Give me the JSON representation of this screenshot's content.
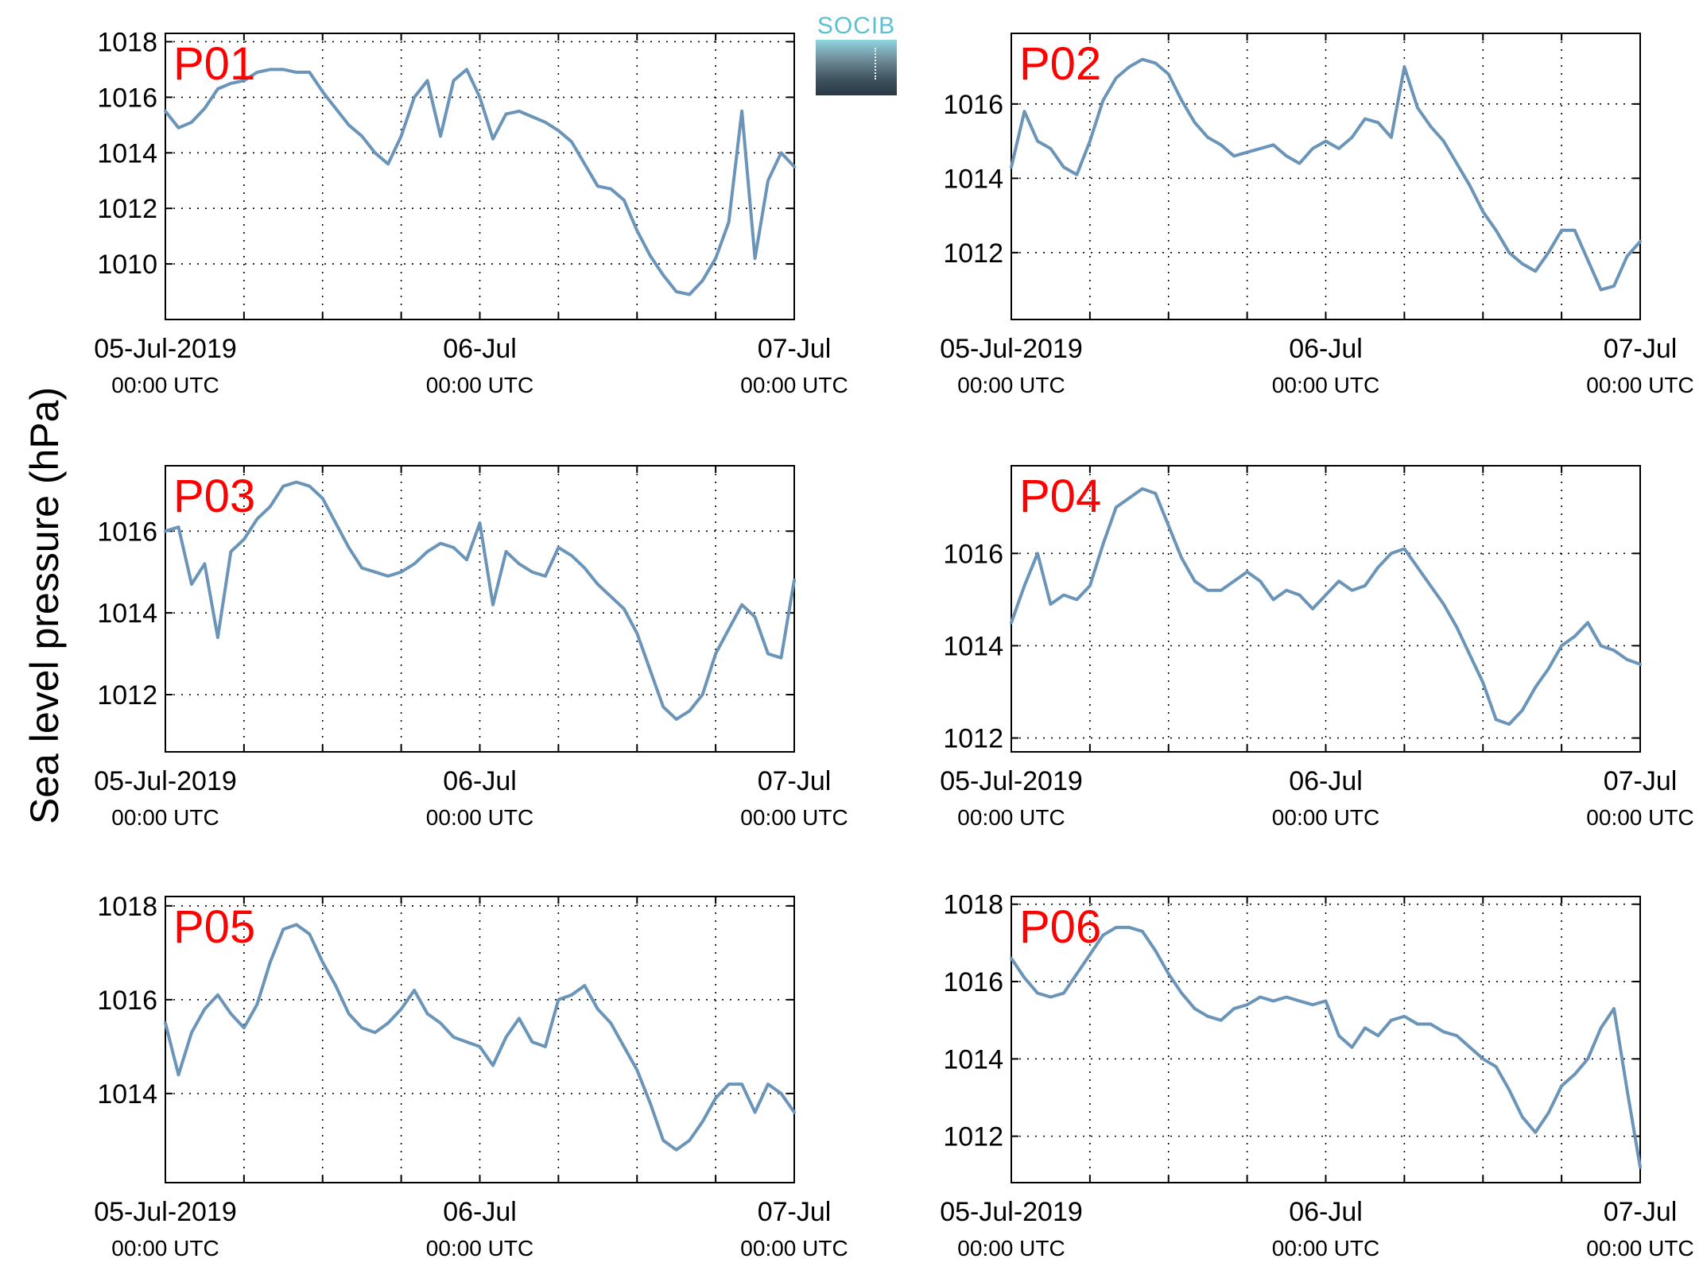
{
  "figure": {
    "ylabel": "Sea level pressure (hPa)",
    "logo_text": "SOCIB"
  },
  "colors": {
    "series": "#6a94b8",
    "panel_label": "#ff0000",
    "grid": "#000000",
    "logo_accent": "#5bc0d4"
  },
  "chart_data": [
    {
      "type": "line",
      "panel_label": "P01",
      "x_range": [
        "2019-07-05T00:00Z",
        "2019-07-07T00:00Z"
      ],
      "x_tick_labels": [
        [
          "05-Jul-2019",
          "00:00 UTC"
        ],
        [
          "06-Jul",
          "00:00 UTC"
        ],
        [
          "07-Jul",
          "00:00 UTC"
        ]
      ],
      "ylim": [
        1008.0,
        1018.3
      ],
      "yticks": [
        1010,
        1012,
        1014,
        1016,
        1018
      ],
      "grid": true,
      "x_hours": [
        0,
        1,
        2,
        3,
        4,
        5,
        6,
        7,
        8,
        9,
        10,
        11,
        12,
        13,
        14,
        15,
        16,
        17,
        18,
        19,
        20,
        21,
        22,
        23,
        24,
        25,
        26,
        27,
        28,
        29,
        30,
        31,
        32,
        33,
        34,
        35,
        36,
        37,
        38,
        39,
        40,
        41,
        42,
        43,
        44,
        45,
        46,
        47,
        48
      ],
      "values": [
        1015.5,
        1014.9,
        1015.1,
        1015.6,
        1016.3,
        1016.5,
        1016.6,
        1016.9,
        1017.0,
        1017.0,
        1016.9,
        1016.9,
        1016.2,
        1015.6,
        1015.0,
        1014.6,
        1014.0,
        1013.6,
        1014.6,
        1016.0,
        1016.6,
        1014.6,
        1016.6,
        1017.0,
        1016.0,
        1014.5,
        1015.4,
        1015.5,
        1015.3,
        1015.1,
        1014.8,
        1014.4,
        1013.6,
        1012.8,
        1012.7,
        1012.3,
        1011.2,
        1010.3,
        1009.6,
        1009.0,
        1008.9,
        1009.4,
        1010.2,
        1011.5,
        1015.5,
        1010.2,
        1013.0,
        1014.0,
        1013.5
      ],
      "series": [
        {
          "name": "",
          "color": "#6a94b8"
        }
      ]
    },
    {
      "type": "line",
      "panel_label": "P02",
      "x_range": [
        "2019-07-05T00:00Z",
        "2019-07-07T00:00Z"
      ],
      "x_tick_labels": [
        [
          "05-Jul-2019",
          "00:00 UTC"
        ],
        [
          "06-Jul",
          "00:00 UTC"
        ],
        [
          "07-Jul",
          "00:00 UTC"
        ]
      ],
      "ylim": [
        1010.2,
        1017.9
      ],
      "yticks": [
        1012,
        1014,
        1016
      ],
      "grid": true,
      "x_hours": [
        0,
        1,
        2,
        3,
        4,
        5,
        6,
        7,
        8,
        9,
        10,
        11,
        12,
        13,
        14,
        15,
        16,
        17,
        18,
        19,
        20,
        21,
        22,
        23,
        24,
        25,
        26,
        27,
        28,
        29,
        30,
        31,
        32,
        33,
        34,
        35,
        36,
        37,
        38,
        39,
        40,
        41,
        42,
        43,
        44,
        45,
        46,
        47,
        48
      ],
      "values": [
        1014.3,
        1015.8,
        1015.0,
        1014.8,
        1014.3,
        1014.1,
        1015.0,
        1016.1,
        1016.7,
        1017.0,
        1017.2,
        1017.1,
        1016.8,
        1016.1,
        1015.5,
        1015.1,
        1014.9,
        1014.6,
        1014.7,
        1014.8,
        1014.9,
        1014.6,
        1014.4,
        1014.8,
        1015.0,
        1014.8,
        1015.1,
        1015.6,
        1015.5,
        1015.1,
        1017.0,
        1015.9,
        1015.4,
        1015.0,
        1014.4,
        1013.8,
        1013.1,
        1012.6,
        1012.0,
        1011.7,
        1011.5,
        1012.0,
        1012.6,
        1012.6,
        1011.8,
        1011.0,
        1011.1,
        1011.9,
        1012.3
      ],
      "series": [
        {
          "name": "",
          "color": "#6a94b8"
        }
      ]
    },
    {
      "type": "line",
      "panel_label": "P03",
      "x_range": [
        "2019-07-05T00:00Z",
        "2019-07-07T00:00Z"
      ],
      "x_tick_labels": [
        [
          "05-Jul-2019",
          "00:00 UTC"
        ],
        [
          "06-Jul",
          "00:00 UTC"
        ],
        [
          "07-Jul",
          "00:00 UTC"
        ]
      ],
      "ylim": [
        1010.6,
        1017.6
      ],
      "yticks": [
        1012,
        1014,
        1016
      ],
      "grid": true,
      "x_hours": [
        0,
        1,
        2,
        3,
        4,
        5,
        6,
        7,
        8,
        9,
        10,
        11,
        12,
        13,
        14,
        15,
        16,
        17,
        18,
        19,
        20,
        21,
        22,
        23,
        24,
        25,
        26,
        27,
        28,
        29,
        30,
        31,
        32,
        33,
        34,
        35,
        36,
        37,
        38,
        39,
        40,
        41,
        42,
        43,
        44,
        45,
        46,
        47,
        48
      ],
      "values": [
        1016.0,
        1016.1,
        1014.7,
        1015.2,
        1013.4,
        1015.5,
        1015.8,
        1016.3,
        1016.6,
        1017.1,
        1017.2,
        1017.1,
        1016.8,
        1016.2,
        1015.6,
        1015.1,
        1015.0,
        1014.9,
        1015.0,
        1015.2,
        1015.5,
        1015.7,
        1015.6,
        1015.3,
        1016.2,
        1014.2,
        1015.5,
        1015.2,
        1015.0,
        1014.9,
        1015.6,
        1015.4,
        1015.1,
        1014.7,
        1014.4,
        1014.1,
        1013.5,
        1012.6,
        1011.7,
        1011.4,
        1011.6,
        1012.0,
        1013.0,
        1013.6,
        1014.2,
        1013.9,
        1013.0,
        1012.9,
        1014.8
      ],
      "series": [
        {
          "name": "",
          "color": "#6a94b8"
        }
      ]
    },
    {
      "type": "line",
      "panel_label": "P04",
      "x_range": [
        "2019-07-05T00:00Z",
        "2019-07-07T00:00Z"
      ],
      "x_tick_labels": [
        [
          "05-Jul-2019",
          "00:00 UTC"
        ],
        [
          "06-Jul",
          "00:00 UTC"
        ],
        [
          "07-Jul",
          "00:00 UTC"
        ]
      ],
      "ylim": [
        1011.7,
        1017.9
      ],
      "yticks": [
        1012,
        1014,
        1016
      ],
      "grid": true,
      "x_hours": [
        0,
        1,
        2,
        3,
        4,
        5,
        6,
        7,
        8,
        9,
        10,
        11,
        12,
        13,
        14,
        15,
        16,
        17,
        18,
        19,
        20,
        21,
        22,
        23,
        24,
        25,
        26,
        27,
        28,
        29,
        30,
        31,
        32,
        33,
        34,
        35,
        36,
        37,
        38,
        39,
        40,
        41,
        42,
        43,
        44,
        45,
        46,
        47,
        48
      ],
      "values": [
        1014.5,
        1015.3,
        1016.0,
        1014.9,
        1015.1,
        1015.0,
        1015.3,
        1016.2,
        1017.0,
        1017.2,
        1017.4,
        1017.3,
        1016.6,
        1015.9,
        1015.4,
        1015.2,
        1015.2,
        1015.4,
        1015.6,
        1015.4,
        1015.0,
        1015.2,
        1015.1,
        1014.8,
        1015.1,
        1015.4,
        1015.2,
        1015.3,
        1015.7,
        1016.0,
        1016.1,
        1015.7,
        1015.3,
        1014.9,
        1014.4,
        1013.8,
        1013.2,
        1012.4,
        1012.3,
        1012.6,
        1013.1,
        1013.5,
        1014.0,
        1014.2,
        1014.5,
        1014.0,
        1013.9,
        1013.7,
        1013.6
      ],
      "series": [
        {
          "name": "",
          "color": "#6a94b8"
        }
      ]
    },
    {
      "type": "line",
      "panel_label": "P05",
      "x_range": [
        "2019-07-05T00:00Z",
        "2019-07-07T00:00Z"
      ],
      "x_tick_labels": [
        [
          "05-Jul-2019",
          "00:00 UTC"
        ],
        [
          "06-Jul",
          "00:00 UTC"
        ],
        [
          "07-Jul",
          "00:00 UTC"
        ]
      ],
      "ylim": [
        1012.1,
        1018.2
      ],
      "yticks": [
        1014,
        1016,
        1018
      ],
      "grid": true,
      "x_hours": [
        0,
        1,
        2,
        3,
        4,
        5,
        6,
        7,
        8,
        9,
        10,
        11,
        12,
        13,
        14,
        15,
        16,
        17,
        18,
        19,
        20,
        21,
        22,
        23,
        24,
        25,
        26,
        27,
        28,
        29,
        30,
        31,
        32,
        33,
        34,
        35,
        36,
        37,
        38,
        39,
        40,
        41,
        42,
        43,
        44,
        45,
        46,
        47,
        48
      ],
      "values": [
        1015.5,
        1014.4,
        1015.3,
        1015.8,
        1016.1,
        1015.7,
        1015.4,
        1015.9,
        1016.8,
        1017.5,
        1017.6,
        1017.4,
        1016.8,
        1016.3,
        1015.7,
        1015.4,
        1015.3,
        1015.5,
        1015.8,
        1016.2,
        1015.7,
        1015.5,
        1015.2,
        1015.1,
        1015.0,
        1014.6,
        1015.2,
        1015.6,
        1015.1,
        1015.0,
        1016.0,
        1016.1,
        1016.3,
        1015.8,
        1015.5,
        1015.0,
        1014.5,
        1013.8,
        1013.0,
        1012.8,
        1013.0,
        1013.4,
        1013.9,
        1014.2,
        1014.2,
        1013.6,
        1014.2,
        1014.0,
        1013.6
      ],
      "series": [
        {
          "name": "",
          "color": "#6a94b8"
        }
      ]
    },
    {
      "type": "line",
      "panel_label": "P06",
      "x_range": [
        "2019-07-05T00:00Z",
        "2019-07-07T00:00Z"
      ],
      "x_tick_labels": [
        [
          "05-Jul-2019",
          "00:00 UTC"
        ],
        [
          "06-Jul",
          "00:00 UTC"
        ],
        [
          "07-Jul",
          "00:00 UTC"
        ]
      ],
      "ylim": [
        1010.8,
        1018.2
      ],
      "yticks": [
        1012,
        1014,
        1016,
        1018
      ],
      "grid": true,
      "x_hours": [
        0,
        1,
        2,
        3,
        4,
        5,
        6,
        7,
        8,
        9,
        10,
        11,
        12,
        13,
        14,
        15,
        16,
        17,
        18,
        19,
        20,
        21,
        22,
        23,
        24,
        25,
        26,
        27,
        28,
        29,
        30,
        31,
        32,
        33,
        34,
        35,
        36,
        37,
        38,
        39,
        40,
        41,
        42,
        43,
        44,
        45,
        46,
        47,
        48
      ],
      "values": [
        1016.6,
        1016.1,
        1015.7,
        1015.6,
        1015.7,
        1016.2,
        1016.7,
        1017.2,
        1017.4,
        1017.4,
        1017.3,
        1016.8,
        1016.2,
        1015.7,
        1015.3,
        1015.1,
        1015.0,
        1015.3,
        1015.4,
        1015.6,
        1015.5,
        1015.6,
        1015.5,
        1015.4,
        1015.5,
        1014.6,
        1014.3,
        1014.8,
        1014.6,
        1015.0,
        1015.1,
        1014.9,
        1014.9,
        1014.7,
        1014.6,
        1014.3,
        1014.0,
        1013.8,
        1013.2,
        1012.5,
        1012.1,
        1012.6,
        1013.3,
        1013.6,
        1014.0,
        1014.8,
        1015.3,
        1013.2,
        1011.2
      ],
      "series": [
        {
          "name": "",
          "color": "#6a94b8"
        }
      ]
    }
  ]
}
